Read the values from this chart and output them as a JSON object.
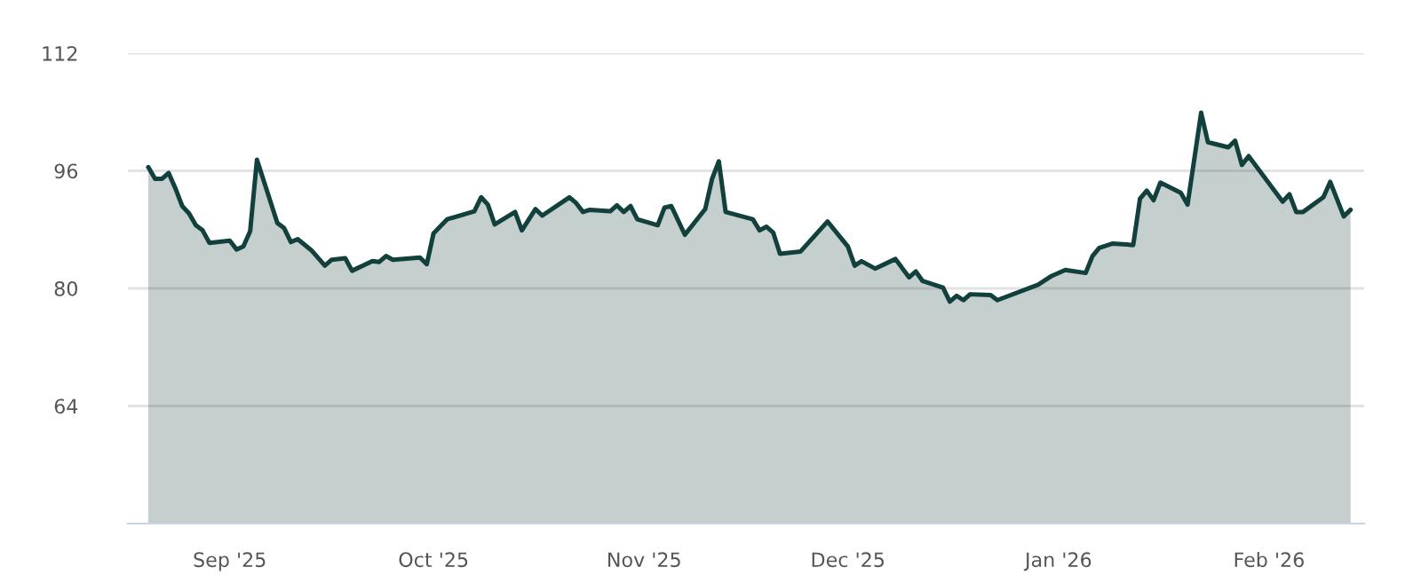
{
  "chart_data": {
    "type": "area",
    "x": [
      "2025-08-20",
      "2025-08-21",
      "2025-08-22",
      "2025-08-23",
      "2025-08-24",
      "2025-08-25",
      "2025-08-26",
      "2025-08-27",
      "2025-08-28",
      "2025-08-29",
      "2025-09-01",
      "2025-09-02",
      "2025-09-03",
      "2025-09-04",
      "2025-09-05",
      "2025-09-08",
      "2025-09-09",
      "2025-09-10",
      "2025-09-11",
      "2025-09-13",
      "2025-09-15",
      "2025-09-16",
      "2025-09-18",
      "2025-09-19",
      "2025-09-22",
      "2025-09-23",
      "2025-09-24",
      "2025-09-25",
      "2025-09-29",
      "2025-09-30",
      "2025-10-01",
      "2025-10-03",
      "2025-10-07",
      "2025-10-08",
      "2025-10-09",
      "2025-10-10",
      "2025-10-13",
      "2025-10-14",
      "2025-10-16",
      "2025-10-17",
      "2025-10-21",
      "2025-10-22",
      "2025-10-23",
      "2025-10-24",
      "2025-10-27",
      "2025-10-28",
      "2025-10-29",
      "2025-10-30",
      "2025-10-31",
      "2025-11-03",
      "2025-11-04",
      "2025-11-05",
      "2025-11-07",
      "2025-11-10",
      "2025-11-11",
      "2025-11-12",
      "2025-11-13",
      "2025-11-17",
      "2025-11-18",
      "2025-11-19",
      "2025-11-20",
      "2025-11-21",
      "2025-11-24",
      "2025-11-28",
      "2025-12-01",
      "2025-12-02",
      "2025-12-03",
      "2025-12-05",
      "2025-12-08",
      "2025-12-10",
      "2025-12-11",
      "2025-12-12",
      "2025-12-15",
      "2025-12-16",
      "2025-12-17",
      "2025-12-18",
      "2025-12-19",
      "2025-12-22",
      "2025-12-23",
      "2025-12-29",
      "2025-12-31",
      "2026-01-02",
      "2026-01-05",
      "2026-01-06",
      "2026-01-07",
      "2026-01-09",
      "2026-01-12",
      "2026-01-13",
      "2026-01-14",
      "2026-01-15",
      "2026-01-16",
      "2026-01-19",
      "2026-01-20",
      "2026-01-22",
      "2026-01-23",
      "2026-01-26",
      "2026-01-27",
      "2026-01-28",
      "2026-01-29",
      "2026-02-03",
      "2026-02-04",
      "2026-02-05",
      "2026-02-06",
      "2026-02-09",
      "2026-02-10",
      "2026-02-12",
      "2026-02-13"
    ],
    "series": [
      {
        "color": "#12403c",
        "values": [
          96.5,
          94.9,
          94.9,
          95.7,
          93.6,
          91.2,
          90.2,
          88.6,
          87.9,
          86.2,
          86.5,
          85.3,
          85.7,
          87.8,
          97.5,
          88.9,
          88.2,
          86.3,
          86.7,
          85.2,
          83.1,
          83.9,
          84.1,
          82.4,
          83.7,
          83.6,
          84.4,
          83.9,
          84.2,
          83.3,
          87.5,
          89.4,
          90.5,
          92.4,
          91.4,
          88.7,
          90.4,
          87.9,
          90.8,
          89.9,
          92.4,
          91.6,
          90.4,
          90.7,
          90.5,
          91.3,
          90.4,
          91.2,
          89.4,
          88.6,
          91.0,
          91.2,
          87.3,
          90.8,
          94.9,
          97.3,
          90.4,
          89.4,
          87.9,
          88.4,
          87.6,
          84.7,
          85.0,
          89.1,
          85.7,
          83.1,
          83.7,
          82.7,
          84.0,
          81.5,
          82.3,
          81.0,
          80.1,
          78.2,
          79.0,
          78.4,
          79.2,
          79.1,
          78.4,
          80.5,
          81.7,
          82.5,
          82.1,
          84.4,
          85.5,
          86.1,
          85.9,
          92.2,
          93.3,
          92.0,
          94.4,
          93.0,
          91.4,
          103.9,
          99.9,
          99.2,
          100.1,
          96.8,
          98.0,
          91.8,
          92.8,
          90.4,
          90.4,
          92.4,
          94.5,
          89.8,
          90.7
        ]
      }
    ],
    "xlim": [
      "2025-08-17",
      "2026-02-15"
    ],
    "xticks": [
      {
        "value": "2025-09-01",
        "label": "Sep '25"
      },
      {
        "value": "2025-10-01",
        "label": "Oct '25"
      },
      {
        "value": "2025-11-01",
        "label": "Nov '25"
      },
      {
        "value": "2025-12-01",
        "label": "Dec '25"
      },
      {
        "value": "2026-01-01",
        "label": "Jan '26"
      },
      {
        "value": "2026-02-01",
        "label": "Feb '26"
      }
    ],
    "ylim": [
      48,
      112
    ],
    "yticks": [
      64,
      80,
      96,
      112
    ],
    "grid": "y",
    "legend": false,
    "marker": "none",
    "line_style": "solid"
  }
}
